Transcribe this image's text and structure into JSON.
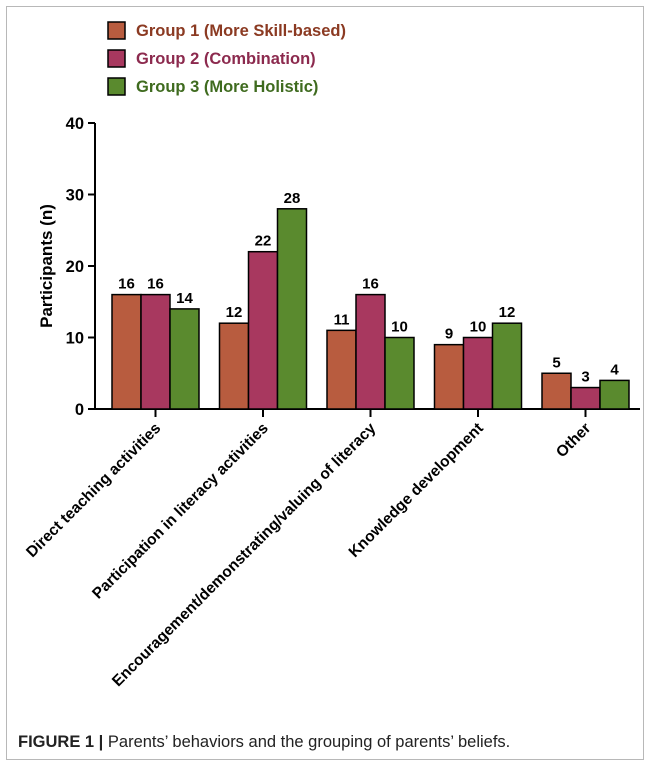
{
  "figure": {
    "label": "FIGURE 1 |",
    "caption": "Parents’ behaviors and the grouping of parents’ beliefs."
  },
  "chart_data": {
    "type": "bar",
    "ylabel": "Participants (n)",
    "xlabel": "",
    "ylim": [
      0,
      40
    ],
    "yticks": [
      0,
      10,
      20,
      30,
      40
    ],
    "grid": false,
    "legend_position": "top-left",
    "categories": [
      "Direct teaching activities",
      "Participation in literacy activities",
      "Encouragement/demonstrating/valuing of literacy",
      "Knowledge development",
      "Other"
    ],
    "series": [
      {
        "name": "Group 1 (More Skill-based)",
        "color": "#b85c3f",
        "text_color": "#8b3a22",
        "values": [
          16,
          12,
          11,
          9,
          5
        ]
      },
      {
        "name": "Group 2 (Combination)",
        "color": "#a8385f",
        "text_color": "#8c2a4e",
        "values": [
          16,
          22,
          16,
          10,
          3
        ]
      },
      {
        "name": "Group 3 (More Holistic)",
        "color": "#5a8a2e",
        "text_color": "#3f6b1f",
        "values": [
          14,
          28,
          10,
          12,
          4
        ]
      }
    ]
  }
}
